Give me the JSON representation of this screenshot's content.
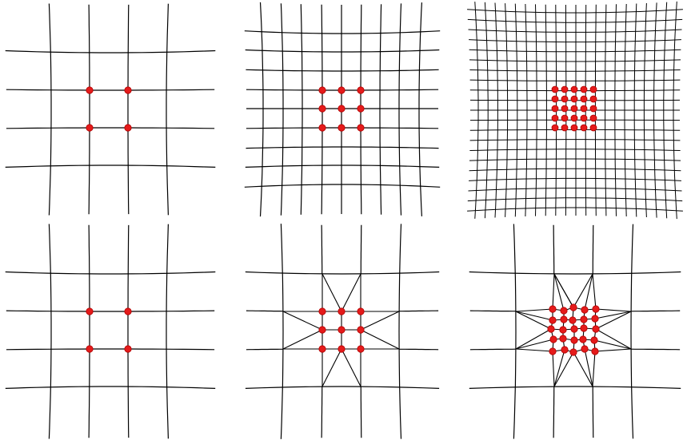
{
  "figure": {
    "panels": [
      {
        "id": "top-left",
        "grid": "coarse",
        "refined_block": "2x2",
        "transition_fan": false
      },
      {
        "id": "top-middle",
        "grid": "medium",
        "refined_block": "3x3",
        "transition_fan": false
      },
      {
        "id": "top-right",
        "grid": "fine",
        "refined_block": "5x5",
        "transition_fan": false
      },
      {
        "id": "bottom-left",
        "grid": "coarse",
        "refined_block": "2x2",
        "transition_fan": false
      },
      {
        "id": "bottom-middle",
        "grid": "coarse",
        "refined_block": "3x3",
        "transition_fan": true
      },
      {
        "id": "bottom-right",
        "grid": "coarse",
        "refined_block": "5x5",
        "transition_fan": true
      }
    ],
    "colors": {
      "grid_line": "#000000",
      "node_fill": "#e51b1b",
      "node_stroke": "#b00000",
      "background": "#ffffff"
    }
  }
}
